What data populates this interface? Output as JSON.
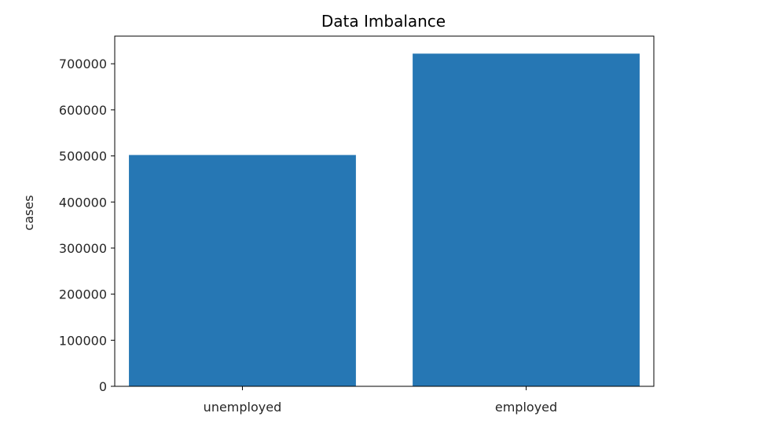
{
  "chart_data": {
    "type": "bar",
    "title": "Data Imbalance",
    "xlabel": "",
    "ylabel": "cases",
    "categories": [
      "unemployed",
      "employed"
    ],
    "values": [
      502000,
      722000
    ],
    "ylim": [
      0,
      760000
    ],
    "yticks": [
      0,
      100000,
      200000,
      300000,
      400000,
      500000,
      600000,
      700000
    ],
    "ytick_labels": [
      "0",
      "100000",
      "200000",
      "300000",
      "400000",
      "500000",
      "600000",
      "700000"
    ],
    "bar_color": "#2677b4",
    "grid": false
  }
}
